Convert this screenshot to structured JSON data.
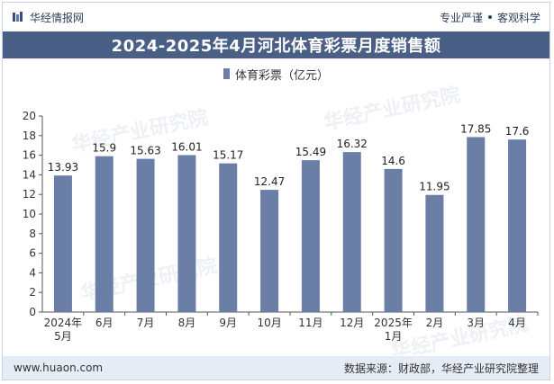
{
  "header": {
    "brand_name": "华经情报网",
    "badge_left": "专业严谨",
    "badge_right": "客观科学"
  },
  "title": "2024-2025年4月河北体育彩票月度销售额",
  "legend": {
    "label": "体育彩票（亿元）"
  },
  "footer": {
    "website": "www.huaon.com",
    "source": "数据来源：财政部，华经产业研究院整理"
  },
  "watermark": "华经产业研究院",
  "colors": {
    "bar": "#6a7ea6",
    "title_bg": "#4a5f86",
    "footer_bg": "#e6ecf5"
  },
  "chart_data": {
    "type": "bar",
    "title": "2024-2025年4月河北体育彩票月度销售额",
    "xlabel": "",
    "ylabel": "",
    "categories": [
      "2024年\n5月",
      "6月",
      "7月",
      "8月",
      "9月",
      "10月",
      "11月",
      "12月",
      "2025年\n1月",
      "2月",
      "3月",
      "4月"
    ],
    "series": [
      {
        "name": "体育彩票（亿元）",
        "values": [
          13.93,
          15.9,
          15.63,
          16.01,
          15.17,
          12.47,
          15.49,
          16.32,
          14.6,
          11.95,
          17.85,
          17.6
        ]
      }
    ],
    "ylim": [
      0,
      20
    ],
    "yticks": [
      0,
      2,
      4,
      6,
      8,
      10,
      12,
      14,
      16,
      18,
      20
    ],
    "grid": false,
    "legend_position": "top-center"
  }
}
